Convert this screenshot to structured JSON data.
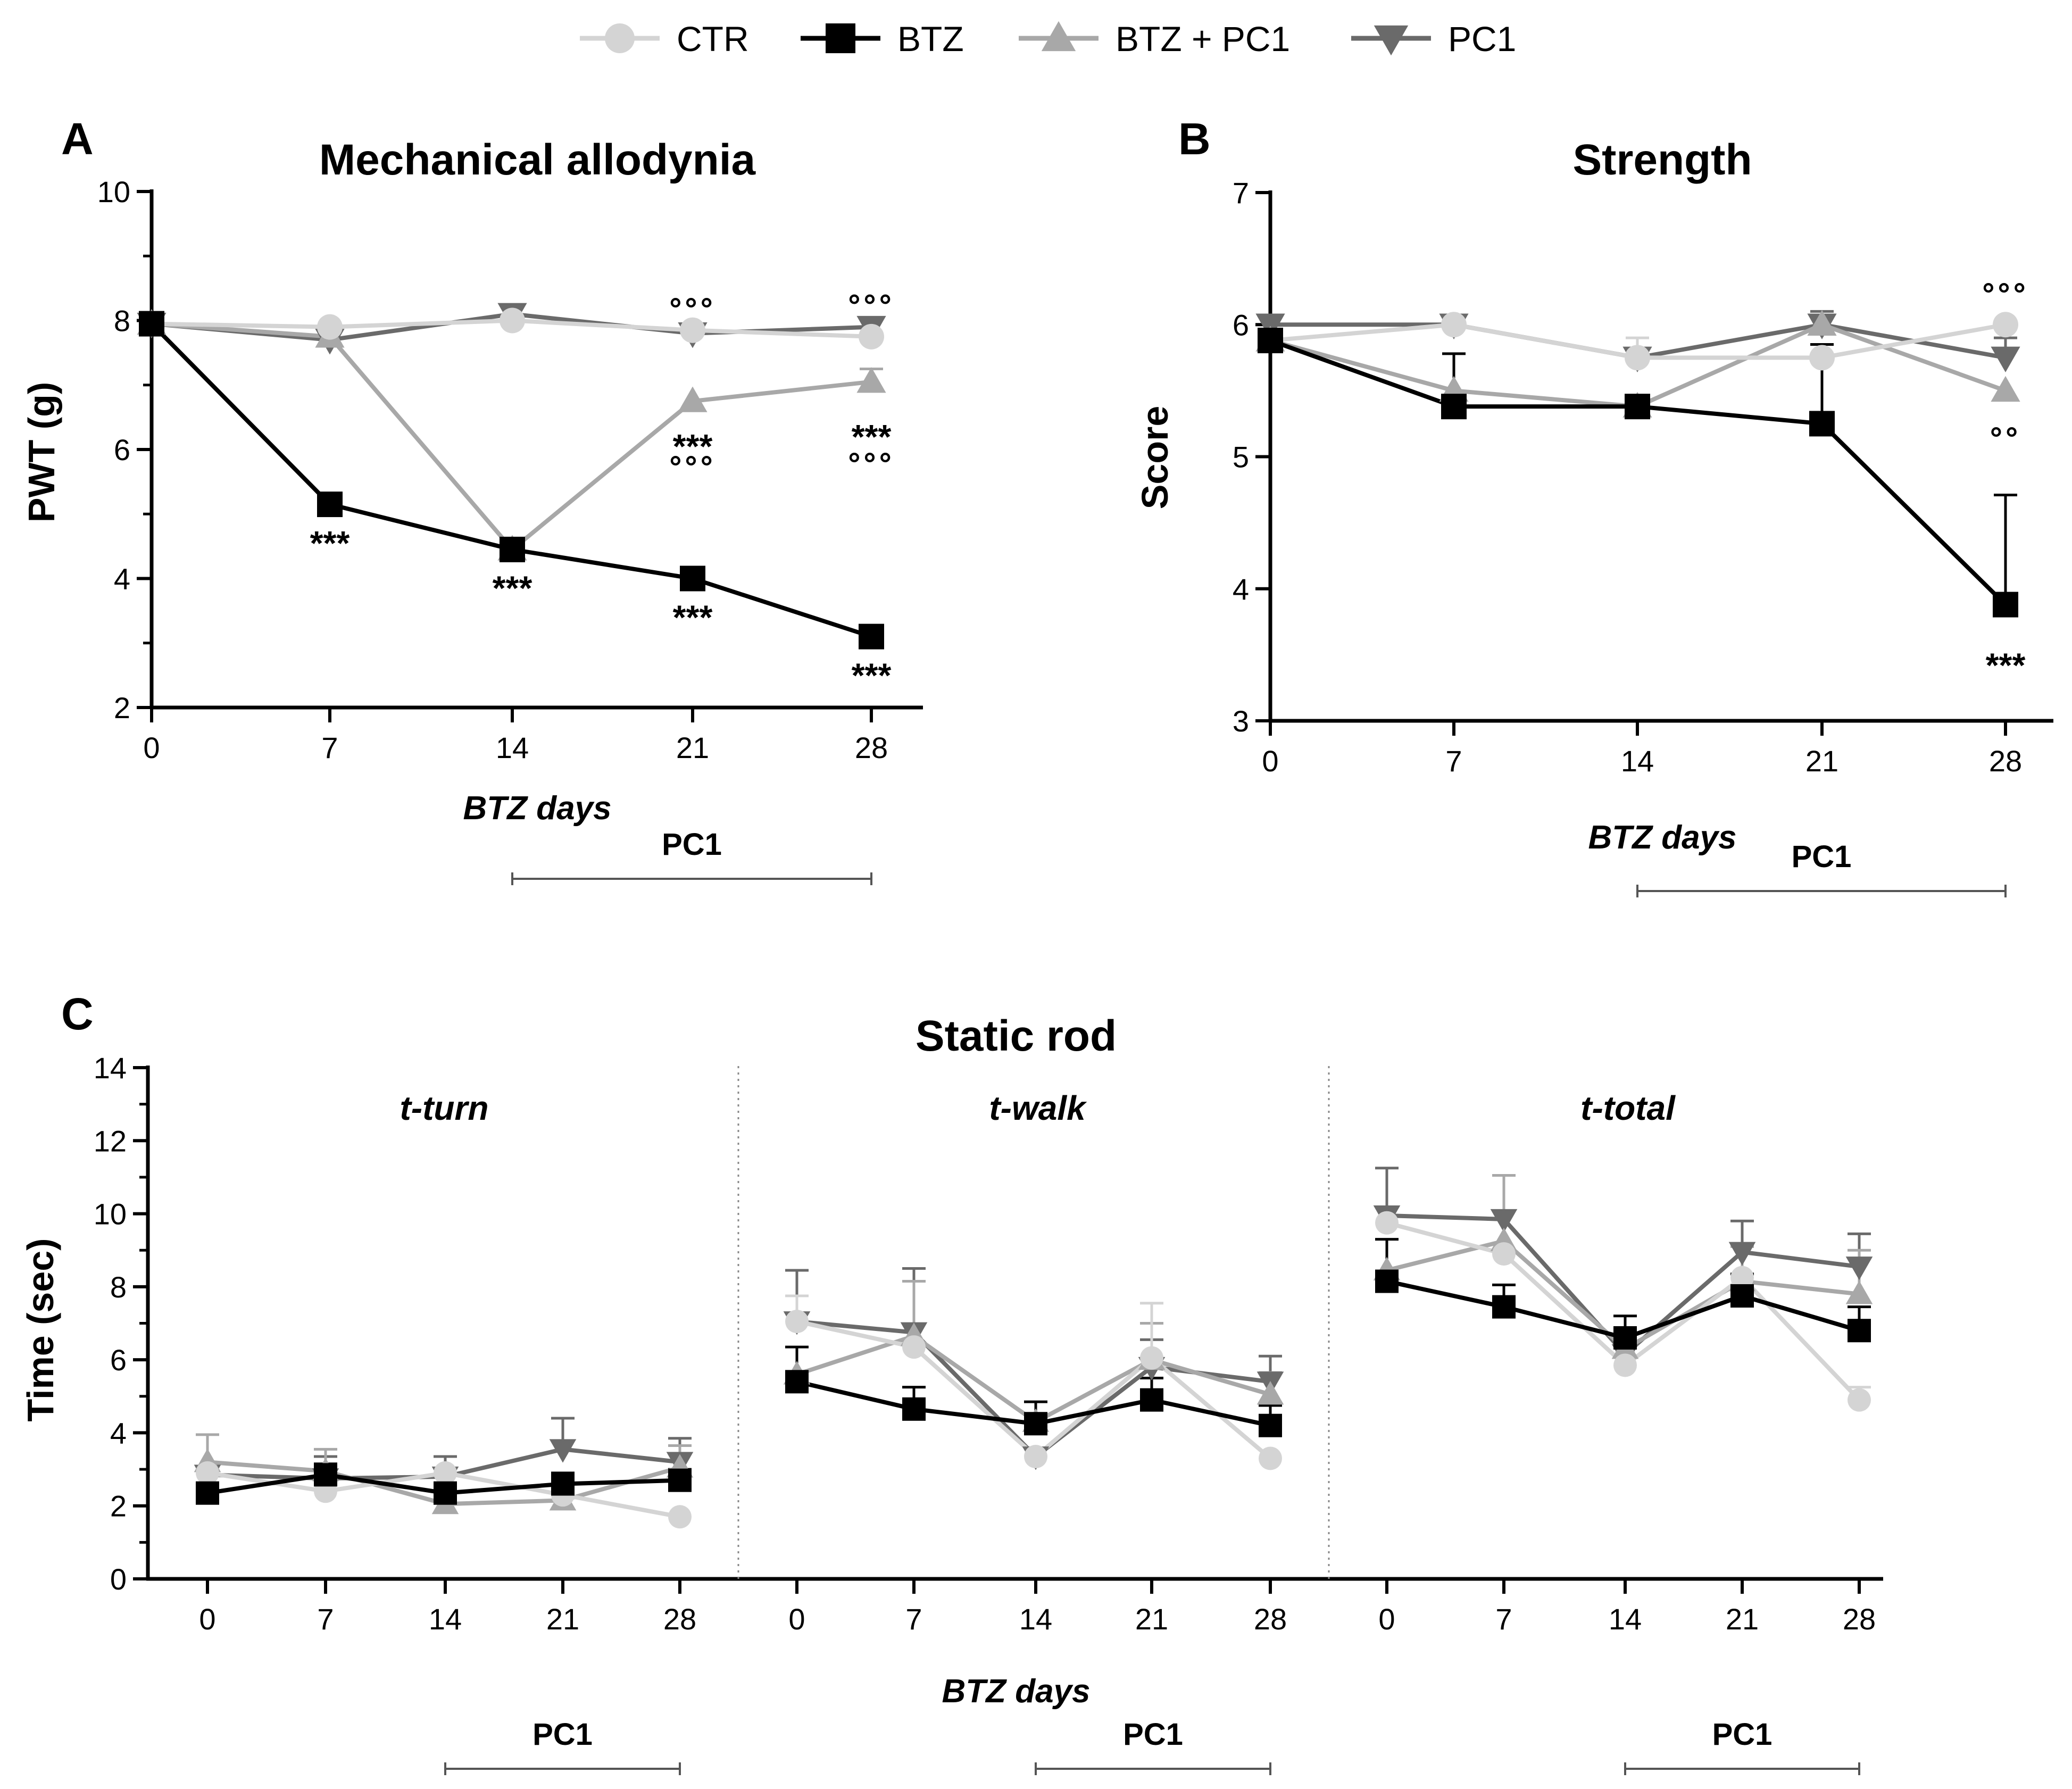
{
  "legend": [
    {
      "name": "CTR",
      "color": "#d4d4d4",
      "marker": "circle"
    },
    {
      "name": "BTZ",
      "color": "#000000",
      "marker": "square"
    },
    {
      "name": "BTZ + PC1",
      "color": "#a8a8a8",
      "marker": "triangle-up"
    },
    {
      "name": "PC1",
      "color": "#6a6a6a",
      "marker": "triangle-down"
    }
  ],
  "chart_data": [
    {
      "panel": "A",
      "type": "line",
      "title": "Mechanical allodynia",
      "xlabel": "BTZ days",
      "ylabel": "PWT (g)",
      "x": [
        0,
        7,
        14,
        21,
        28
      ],
      "ylim": [
        2,
        10
      ],
      "yticks": [
        "2",
        "4",
        "6",
        "8",
        "10"
      ],
      "xticks": [
        "0",
        "7",
        "14",
        "21",
        "28"
      ],
      "treatment_bar": {
        "label": "PC1",
        "from": 14,
        "to": 28
      },
      "series": [
        {
          "name": "CTR",
          "values": [
            7.95,
            7.9,
            8.0,
            7.85,
            7.75
          ],
          "errors": [
            0,
            0,
            0,
            0,
            0
          ]
        },
        {
          "name": "BTZ",
          "values": [
            7.95,
            5.15,
            4.45,
            4.0,
            3.1
          ],
          "errors": [
            0,
            0,
            0,
            0,
            0
          ]
        },
        {
          "name": "BTZ + PC1",
          "values": [
            7.95,
            7.75,
            4.45,
            6.75,
            7.05
          ],
          "errors": [
            0,
            0,
            0,
            0,
            0.2
          ]
        },
        {
          "name": "PC1",
          "values": [
            7.95,
            7.7,
            8.1,
            7.8,
            7.9
          ],
          "errors": [
            0,
            0,
            0,
            0,
            0
          ]
        }
      ],
      "annotations": [
        {
          "x": 7,
          "text": "***",
          "yref": 4.55
        },
        {
          "x": 14,
          "text": "***",
          "yref": 3.85
        },
        {
          "x": 21,
          "text": "***",
          "yref": 3.4
        },
        {
          "x": 28,
          "text": "***",
          "yref": 2.5
        },
        {
          "x": 21,
          "text": "***",
          "yref": 6.05
        },
        {
          "x": 21,
          "text": "°°°",
          "yref": 5.75
        },
        {
          "x": 28,
          "text": "***",
          "yref": 6.2
        },
        {
          "x": 28,
          "text": "°°°",
          "yref": 5.8
        },
        {
          "x": 21,
          "text": "°°°",
          "yref": 8.2
        },
        {
          "x": 28,
          "text": "°°°",
          "yref": 8.25
        }
      ]
    },
    {
      "panel": "B",
      "type": "line",
      "title": "Strength",
      "xlabel": "BTZ days",
      "ylabel": "Score",
      "x": [
        0,
        7,
        14,
        21,
        28
      ],
      "ylim": [
        3,
        7
      ],
      "yticks": [
        "3",
        "4",
        "5",
        "6",
        "7"
      ],
      "xticks": [
        "0",
        "7",
        "14",
        "21",
        "28"
      ],
      "treatment_bar": {
        "label": "PC1",
        "from": 14,
        "to": 28
      },
      "series": [
        {
          "name": "CTR",
          "values": [
            5.88,
            6.0,
            5.75,
            5.75,
            6.0
          ],
          "errors": [
            0,
            0,
            0.15,
            0,
            0
          ]
        },
        {
          "name": "BTZ",
          "values": [
            5.88,
            5.38,
            5.38,
            5.25,
            3.88
          ],
          "errors": [
            0,
            0.4,
            0,
            0.6,
            0.83
          ]
        },
        {
          "name": "BTZ + PC1",
          "values": [
            5.88,
            5.5,
            5.38,
            6.0,
            5.5
          ],
          "errors": [
            0,
            0,
            0,
            0,
            0
          ]
        },
        {
          "name": "PC1",
          "values": [
            6.0,
            6.0,
            5.75,
            6.0,
            5.75
          ],
          "errors": [
            0,
            0.05,
            0,
            0.1,
            0.15
          ]
        }
      ],
      "annotations": [
        {
          "x": 28,
          "text": "***",
          "yref": 3.42
        },
        {
          "x": 28,
          "text": "°°",
          "yref": 5.15
        },
        {
          "x": 28,
          "text": "°°°",
          "yref": 6.24
        }
      ]
    },
    {
      "panel": "C",
      "type": "line",
      "title": "Static rod",
      "xlabel": "BTZ days",
      "ylabel": "Time (sec)",
      "ylim": [
        0,
        14
      ],
      "yticks": [
        "0",
        "2",
        "4",
        "6",
        "8",
        "10",
        "12",
        "14"
      ],
      "xticks": [
        "0",
        "7",
        "14",
        "21",
        "28"
      ],
      "x": [
        0,
        7,
        14,
        21,
        28
      ],
      "subplots": [
        {
          "title": "t-turn",
          "treatment_bar": {
            "label": "PC1",
            "from": 14,
            "to": 28
          },
          "series": [
            {
              "name": "CTR",
              "values": [
                2.9,
                2.4,
                2.9,
                2.3,
                1.7
              ],
              "errors": [
                0,
                0,
                0,
                0,
                0
              ]
            },
            {
              "name": "BTZ",
              "values": [
                2.35,
                2.85,
                2.35,
                2.6,
                2.7
              ],
              "errors": [
                0,
                0.3,
                0,
                0.3,
                0.3
              ]
            },
            {
              "name": "BTZ + PC1",
              "values": [
                3.2,
                2.95,
                2.05,
                2.15,
                3.05
              ],
              "errors": [
                0.75,
                0.6,
                0.5,
                0.4,
                0.6
              ]
            },
            {
              "name": "PC1",
              "values": [
                2.85,
                2.75,
                2.8,
                3.55,
                3.2
              ],
              "errors": [
                0,
                0.6,
                0.55,
                0.85,
                0.65
              ]
            }
          ]
        },
        {
          "title": "t-walk",
          "treatment_bar": {
            "label": "PC1",
            "from": 14,
            "to": 28
          },
          "series": [
            {
              "name": "CTR",
              "values": [
                7.05,
                6.35,
                3.35,
                6.05,
                3.3
              ],
              "errors": [
                0.7,
                0,
                0,
                1.5,
                0
              ]
            },
            {
              "name": "BTZ",
              "values": [
                5.4,
                4.65,
                4.25,
                4.9,
                4.2
              ],
              "errors": [
                0.95,
                0.6,
                0.6,
                0.6,
                0.55
              ]
            },
            {
              "name": "BTZ + PC1",
              "values": [
                5.6,
                6.65,
                4.3,
                6.0,
                5.05
              ],
              "errors": [
                0,
                1.5,
                0,
                1.0,
                0.6
              ]
            },
            {
              "name": "PC1",
              "values": [
                7.05,
                6.75,
                3.35,
                5.8,
                5.4
              ],
              "errors": [
                1.4,
                1.75,
                0,
                0.75,
                0.7
              ]
            }
          ]
        },
        {
          "title": "t-total",
          "treatment_bar": {
            "label": "PC1",
            "from": 14,
            "to": 28
          },
          "series": [
            {
              "name": "CTR",
              "values": [
                9.75,
                8.9,
                5.85,
                8.25,
                4.9
              ],
              "errors": [
                0,
                0,
                0,
                0,
                0.35
              ]
            },
            {
              "name": "BTZ",
              "values": [
                8.15,
                7.45,
                6.6,
                7.75,
                6.8
              ],
              "errors": [
                1.15,
                0.6,
                0.6,
                0.6,
                0.65
              ]
            },
            {
              "name": "BTZ + PC1",
              "values": [
                8.45,
                9.25,
                6.3,
                8.15,
                7.8
              ],
              "errors": [
                0,
                1.8,
                0,
                0.95,
                1.2
              ]
            },
            {
              "name": "PC1",
              "values": [
                9.95,
                9.85,
                6.15,
                8.95,
                8.55
              ],
              "errors": [
                1.3,
                1.2,
                0,
                0.85,
                0.9
              ]
            }
          ]
        }
      ]
    }
  ]
}
